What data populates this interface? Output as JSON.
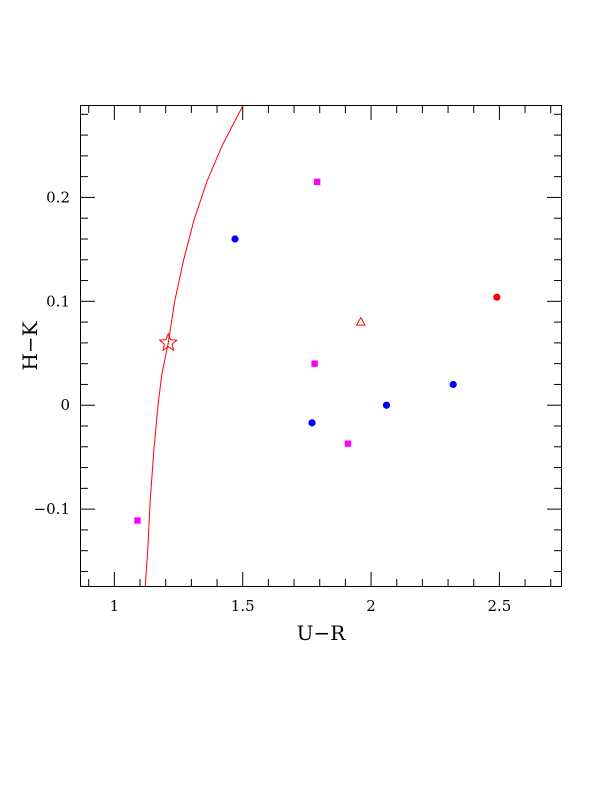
{
  "chart_data": {
    "type": "scatter",
    "xlabel": "U−R",
    "ylabel": "H−K",
    "xlim": [
      0.87,
      2.74
    ],
    "ylim": [
      -0.174,
      0.288
    ],
    "x_ticks": [
      1,
      1.5,
      2,
      2.5
    ],
    "x_tick_labels": [
      "1",
      "1.5",
      "2",
      "2.5"
    ],
    "y_ticks": [
      -0.1,
      0,
      0.1,
      0.2
    ],
    "y_tick_labels": [
      "−0.1",
      "0",
      "0.1",
      "0.2"
    ],
    "grid": false,
    "series": [
      {
        "marker": "circle",
        "color": "#0000ff",
        "points": [
          [
            1.47,
            0.16
          ],
          [
            1.77,
            -0.017
          ],
          [
            2.06,
            0.0
          ],
          [
            2.32,
            0.02
          ]
        ]
      },
      {
        "marker": "square",
        "color": "#ff00ff",
        "points": [
          [
            1.09,
            -0.111
          ],
          [
            1.78,
            0.04
          ],
          [
            1.79,
            0.215
          ],
          [
            1.91,
            -0.037
          ]
        ]
      },
      {
        "marker": "circle",
        "color": "#ff0000",
        "points": [
          [
            2.49,
            0.104
          ]
        ]
      },
      {
        "marker": "triangle-open",
        "color": "#ff0000",
        "points": [
          [
            1.96,
            0.08
          ]
        ]
      },
      {
        "marker": "star-open",
        "color": "#ff0000",
        "points": [
          [
            1.21,
            0.06
          ]
        ]
      }
    ],
    "curve": {
      "color": "#ff0000",
      "points": [
        [
          1.12,
          -0.174
        ],
        [
          1.13,
          -0.14
        ],
        [
          1.14,
          -0.09
        ],
        [
          1.155,
          -0.04
        ],
        [
          1.17,
          0.0
        ],
        [
          1.185,
          0.03
        ],
        [
          1.21,
          0.06
        ],
        [
          1.235,
          0.1
        ],
        [
          1.27,
          0.14
        ],
        [
          1.31,
          0.178
        ],
        [
          1.36,
          0.215
        ],
        [
          1.42,
          0.25
        ],
        [
          1.5,
          0.288
        ]
      ]
    }
  }
}
